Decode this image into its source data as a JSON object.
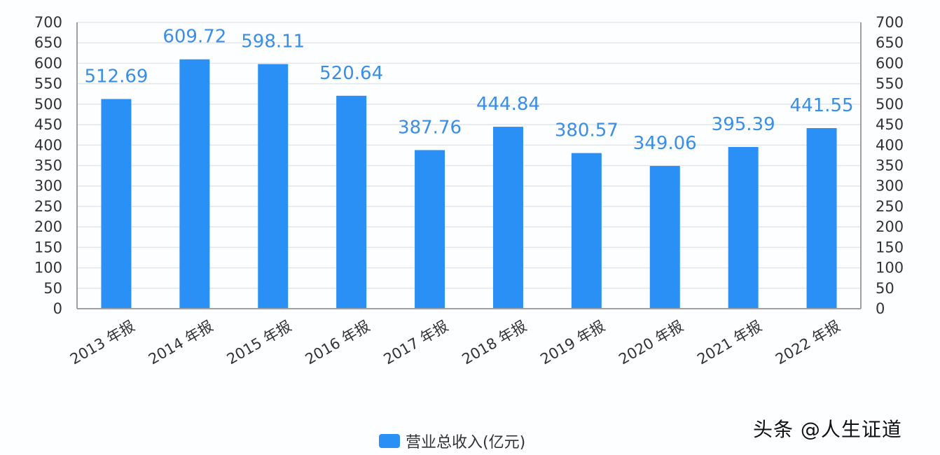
{
  "chart_data": {
    "type": "bar",
    "title": "",
    "xlabel": "",
    "ylabel": "",
    "ylabel_right": "",
    "categories": [
      "2013 年报",
      "2014 年报",
      "2015 年报",
      "2016 年报",
      "2017 年报",
      "2018 年报",
      "2019 年报",
      "2020 年报",
      "2021 年报",
      "2022 年报"
    ],
    "series": [
      {
        "name": "营业总收入(亿元)",
        "values": [
          512.69,
          609.72,
          598.11,
          520.64,
          387.76,
          444.84,
          380.57,
          349.06,
          395.39,
          441.55
        ],
        "color": "#2b90f5"
      }
    ],
    "data_labels": [
      "512.69",
      "609.72",
      "598.11",
      "520.64",
      "387.76",
      "444.84",
      "380.57",
      "349.06",
      "395.39",
      "441.55"
    ],
    "ylim": [
      0,
      700
    ],
    "y_ticks": [
      0,
      50,
      100,
      150,
      200,
      250,
      300,
      350,
      400,
      450,
      500,
      550,
      600,
      650,
      700
    ],
    "y_ticks_right": [
      0,
      50,
      100,
      150,
      200,
      250,
      300,
      350,
      400,
      450,
      500,
      550,
      600,
      650,
      700
    ],
    "grid": true,
    "legend_position": "bottom"
  },
  "legend": {
    "label": "营业总收入(亿元)"
  },
  "watermark": "头条 @人生证道",
  "colors": {
    "bar": "#2b90f5",
    "label": "#3a8ee6",
    "grid": "#e3e6ea",
    "axis": "#a0a0a0"
  }
}
